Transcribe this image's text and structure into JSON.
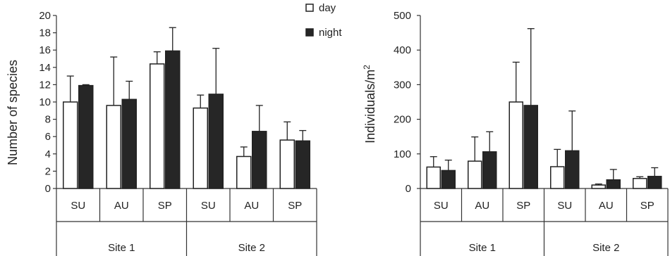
{
  "legend": {
    "day": "day",
    "night": "night"
  },
  "colors": {
    "day": "#ffffff",
    "night": "#262626",
    "outline": "#222222"
  },
  "chart_data": [
    {
      "type": "bar",
      "ylabel": "Number of species",
      "ylim": [
        0,
        20
      ],
      "yticks": [
        0,
        2,
        4,
        6,
        8,
        10,
        12,
        14,
        16,
        18,
        20
      ],
      "categories": [
        "SU",
        "AU",
        "SP",
        "SU",
        "AU",
        "SP"
      ],
      "groups": [
        {
          "label": "Site 1",
          "span": 3
        },
        {
          "label": "Site 2",
          "span": 3
        }
      ],
      "series": [
        {
          "name": "day",
          "values": [
            10.0,
            9.6,
            14.4,
            9.3,
            3.7,
            5.6
          ],
          "errors": [
            3.0,
            5.6,
            1.4,
            1.5,
            1.1,
            2.1
          ]
        },
        {
          "name": "night",
          "values": [
            11.9,
            10.3,
            15.9,
            10.9,
            6.6,
            5.5
          ],
          "errors": [
            0.1,
            2.1,
            2.7,
            5.3,
            3.0,
            1.2
          ]
        }
      ]
    },
    {
      "type": "bar",
      "ylabel": "Individuals/m",
      "ylabel_sup": "2",
      "ylim": [
        0,
        500
      ],
      "yticks": [
        0,
        100,
        200,
        300,
        400,
        500
      ],
      "categories": [
        "SU",
        "AU",
        "SP",
        "SU",
        "AU",
        "SP"
      ],
      "groups": [
        {
          "label": "Site 1",
          "span": 3
        },
        {
          "label": "Site 2",
          "span": 3
        }
      ],
      "series": [
        {
          "name": "day",
          "values": [
            62,
            79,
            250,
            63,
            10,
            29
          ],
          "errors": [
            30,
            70,
            115,
            50,
            3,
            5
          ]
        },
        {
          "name": "night",
          "values": [
            52,
            106,
            240,
            109,
            25,
            35
          ],
          "errors": [
            30,
            58,
            222,
            115,
            30,
            25
          ]
        }
      ]
    }
  ]
}
